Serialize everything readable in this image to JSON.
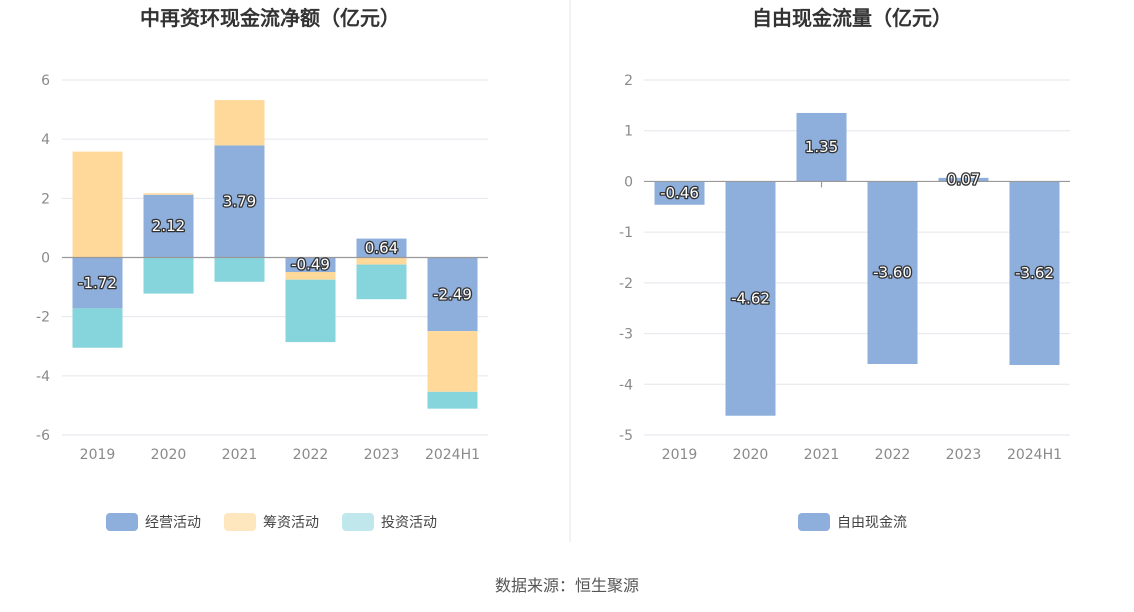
{
  "chart_data": [
    {
      "type": "bar",
      "stacked": true,
      "title": "中再资环现金流净额（亿元）",
      "categories": [
        "2019",
        "2020",
        "2021",
        "2022",
        "2023",
        "2024H1"
      ],
      "ylim": [
        -6,
        6
      ],
      "yticks": [
        6,
        4,
        2,
        0,
        -2,
        -4,
        -6
      ],
      "grid": true,
      "legend_position": "bottom",
      "series": [
        {
          "name": "经营活动",
          "color": "#8eaedc",
          "values": [
            -1.72,
            2.12,
            3.79,
            -0.49,
            0.64,
            -2.49
          ],
          "labels": [
            "-1.72",
            "2.12",
            "3.79",
            "-0.49",
            "0.64",
            "-2.49"
          ]
        },
        {
          "name": "筹资活动",
          "color": "#ffd99a",
          "values": [
            3.58,
            0.05,
            1.53,
            -0.26,
            -0.24,
            -2.05
          ]
        },
        {
          "name": "投资活动",
          "color": "#86d5dc",
          "values": [
            -1.33,
            -1.22,
            -0.82,
            -2.11,
            -1.17,
            -0.57
          ]
        }
      ],
      "legend_colors": [
        "#8eaedc",
        "#fee7bf",
        "#c0e8ec"
      ]
    },
    {
      "type": "bar",
      "title": "自由现金流量（亿元）",
      "categories": [
        "2019",
        "2020",
        "2021",
        "2022",
        "2023",
        "2024H1"
      ],
      "ylim": [
        -5,
        2
      ],
      "yticks": [
        2,
        1,
        0,
        -1,
        -2,
        -3,
        -4,
        -5
      ],
      "grid": true,
      "legend_position": "bottom",
      "series": [
        {
          "name": "自由现金流",
          "color": "#8eaedc",
          "values": [
            -0.46,
            -4.62,
            1.35,
            -3.6,
            0.07,
            -3.62
          ],
          "labels": [
            "-0.46",
            "-4.62",
            "1.35",
            "-3.60",
            "0.07",
            "-3.62"
          ]
        }
      ],
      "legend_colors": [
        "#8eaedc"
      ]
    }
  ],
  "source": "数据来源：恒生聚源"
}
